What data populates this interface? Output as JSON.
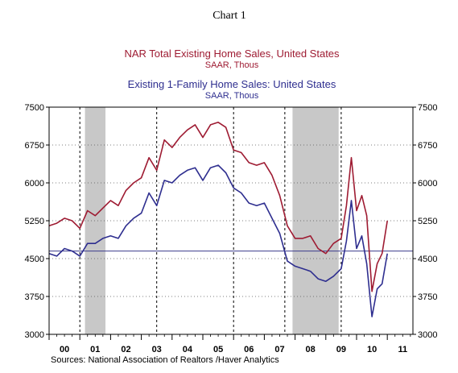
{
  "page_title": "Chart 1",
  "source_note": "Sources:  National Association of Realtors /Haver Analytics",
  "chart_data": {
    "type": "line",
    "title": "NAR Total Existing Home Sales, United States",
    "subtitle": "SAAR, Thous",
    "title2": "Existing 1-Family Home Sales: United States",
    "subtitle2": "SAAR, Thous",
    "xlabel": "",
    "ylabel": "",
    "ylim": [
      3000,
      7500
    ],
    "xlim": [
      2000,
      2011.833
    ],
    "y_ticks": [
      3000,
      3750,
      4500,
      5250,
      6000,
      6750,
      7500
    ],
    "y_tick_labels": [
      "3000",
      "3750",
      "4500",
      "5250",
      "6000",
      "6750",
      "7500"
    ],
    "x_tick_labels": [
      {
        "label": "00",
        "x": 2000.5
      },
      {
        "label": "01",
        "x": 2001.5
      },
      {
        "label": "02",
        "x": 2002.5
      },
      {
        "label": "03",
        "x": 2003.5
      },
      {
        "label": "04",
        "x": 2004.5
      },
      {
        "label": "05",
        "x": 2005.5
      },
      {
        "label": "06",
        "x": 2006.5
      },
      {
        "label": "07",
        "x": 2007.5
      },
      {
        "label": "08",
        "x": 2008.5
      },
      {
        "label": "09",
        "x": 2009.5
      },
      {
        "label": "10",
        "x": 2010.5
      },
      {
        "label": "11",
        "x": 2011.5
      }
    ],
    "recessions": [
      [
        2001.167,
        2001.833
      ],
      [
        2007.917,
        2009.417
      ]
    ],
    "vertical_dashed": [
      2001.0,
      2003.5,
      2006.0,
      2007.667,
      2009.5
    ],
    "reference_line": {
      "y": 4650,
      "color": "#3b3b8c"
    },
    "grid": "dashed vertical, dotted horizontal",
    "series": [
      {
        "name": "NAR Total Existing Home Sales, United States",
        "color": "#9e1b32",
        "x": [
          2000.0,
          2000.25,
          2000.5,
          2000.75,
          2001.0,
          2001.25,
          2001.5,
          2001.75,
          2002.0,
          2002.25,
          2002.5,
          2002.75,
          2003.0,
          2003.25,
          2003.5,
          2003.75,
          2004.0,
          2004.25,
          2004.5,
          2004.75,
          2005.0,
          2005.25,
          2005.5,
          2005.75,
          2006.0,
          2006.25,
          2006.5,
          2006.75,
          2007.0,
          2007.25,
          2007.5,
          2007.75,
          2008.0,
          2008.25,
          2008.5,
          2008.75,
          2009.0,
          2009.25,
          2009.5,
          2009.67,
          2009.83,
          2010.0,
          2010.17,
          2010.33,
          2010.5,
          2010.67,
          2010.83,
          2011.0
        ],
        "values": [
          5150,
          5200,
          5300,
          5250,
          5100,
          5450,
          5350,
          5500,
          5650,
          5550,
          5850,
          6000,
          6100,
          6500,
          6250,
          6850,
          6700,
          6900,
          7050,
          7150,
          6900,
          7150,
          7200,
          7100,
          6650,
          6600,
          6400,
          6350,
          6400,
          6150,
          5750,
          5150,
          4900,
          4900,
          4950,
          4700,
          4600,
          4800,
          4900,
          5550,
          6500,
          5450,
          5750,
          5350,
          3850,
          4400,
          4600,
          5250
        ]
      },
      {
        "name": "Existing 1-Family Home Sales: United States",
        "color": "#2e2e8f",
        "x": [
          2000.0,
          2000.25,
          2000.5,
          2000.75,
          2001.0,
          2001.25,
          2001.5,
          2001.75,
          2002.0,
          2002.25,
          2002.5,
          2002.75,
          2003.0,
          2003.25,
          2003.5,
          2003.75,
          2004.0,
          2004.25,
          2004.5,
          2004.75,
          2005.0,
          2005.25,
          2005.5,
          2005.75,
          2006.0,
          2006.25,
          2006.5,
          2006.75,
          2007.0,
          2007.25,
          2007.5,
          2007.75,
          2008.0,
          2008.25,
          2008.5,
          2008.75,
          2009.0,
          2009.25,
          2009.5,
          2009.67,
          2009.83,
          2010.0,
          2010.17,
          2010.33,
          2010.5,
          2010.67,
          2010.83,
          2011.0
        ],
        "values": [
          4600,
          4550,
          4700,
          4650,
          4550,
          4800,
          4800,
          4900,
          4950,
          4900,
          5150,
          5300,
          5400,
          5800,
          5550,
          6050,
          6000,
          6150,
          6250,
          6300,
          6050,
          6300,
          6350,
          6200,
          5900,
          5800,
          5600,
          5550,
          5600,
          5300,
          5000,
          4450,
          4350,
          4300,
          4250,
          4100,
          4050,
          4150,
          4300,
          4850,
          5650,
          4700,
          4950,
          4400,
          3350,
          3900,
          4000,
          4600
        ]
      }
    ]
  }
}
